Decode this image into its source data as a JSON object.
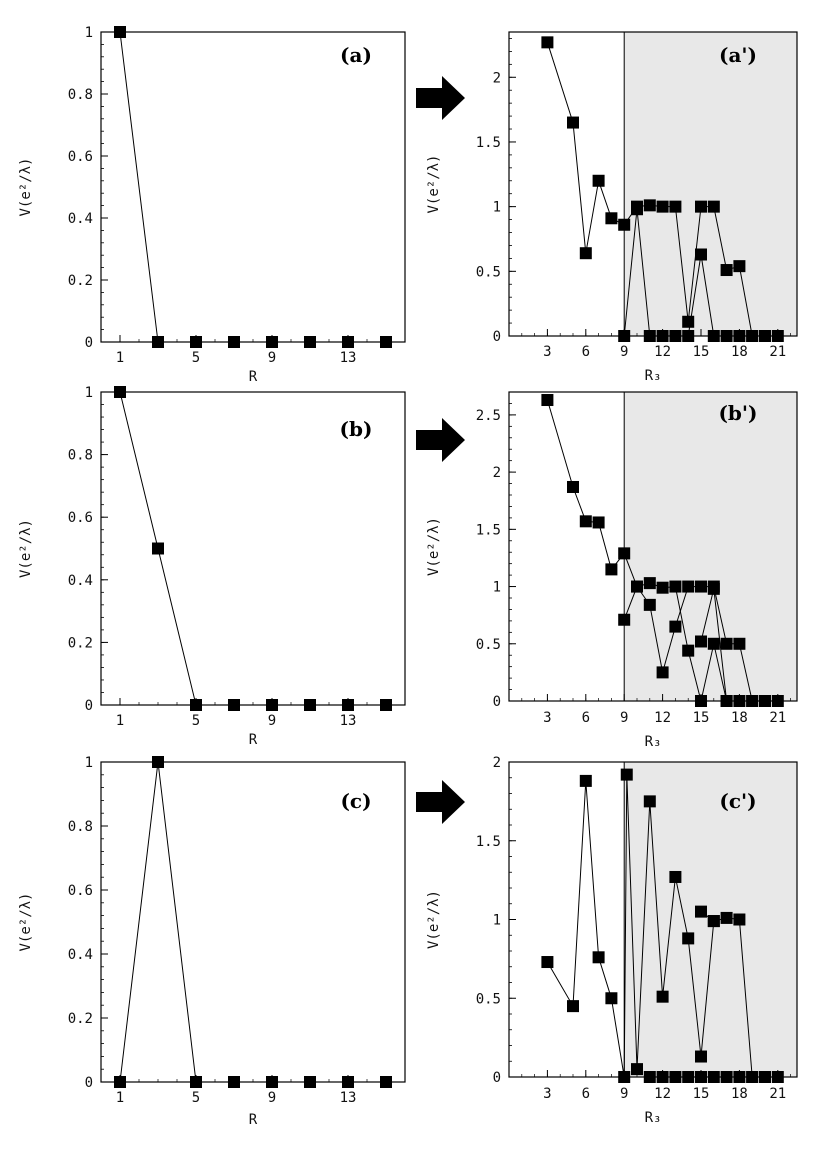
{
  "charts": [
    {
      "panel_label": "(a)",
      "chart_data": {
        "type": "line",
        "xlabel": "R",
        "ylabel": "V(e²/λ)",
        "xlim": [
          0,
          16
        ],
        "ylim": [
          0,
          1
        ],
        "xticks": [
          1,
          5,
          9,
          13
        ],
        "yticks": [
          0,
          0.2,
          0.4,
          0.6,
          0.8,
          1
        ],
        "ytick_labels": [
          "0",
          "0.2",
          "0.4",
          "0.6",
          "0.8",
          "1"
        ],
        "grid": false,
        "series": [
          {
            "x": [
              1,
              3,
              5,
              7,
              9,
              11,
              13,
              15
            ],
            "y": [
              1,
              0,
              0,
              0,
              0,
              0,
              0,
              0
            ]
          }
        ]
      }
    },
    {
      "panel_label": "(a')",
      "chart_data": {
        "type": "line",
        "xlabel": "R₃",
        "ylabel": "V(e²/λ)",
        "xlim": [
          0,
          22.5
        ],
        "ylim": [
          0,
          2.35
        ],
        "xticks": [
          3,
          6,
          9,
          12,
          15,
          18,
          21
        ],
        "yticks": [
          0,
          0.5,
          1,
          1.5,
          2
        ],
        "ytick_labels": [
          "0",
          "0.5",
          "1",
          "1.5",
          "2"
        ],
        "shaded_region_x_from": 9,
        "grid": false,
        "series": [
          {
            "x": [
              3,
              5,
              6,
              7,
              8,
              9,
              10,
              11,
              12,
              13,
              14,
              15,
              16,
              17,
              18,
              19
            ],
            "y": [
              2.27,
              1.65,
              0.64,
              1.2,
              0.91,
              0.86,
              1.0,
              1.01,
              1.0,
              1.0,
              0.11,
              1.0,
              1.0,
              0.51,
              0.54,
              0
            ]
          },
          {
            "x": [
              9,
              10,
              11,
              12,
              13,
              14,
              15,
              16,
              17,
              18,
              19,
              20,
              21
            ],
            "y": [
              0,
              0.98,
              0,
              0,
              0,
              0,
              0.63,
              0,
              0,
              0,
              0,
              0,
              0
            ]
          }
        ]
      }
    },
    {
      "panel_label": "(b)",
      "chart_data": {
        "type": "line",
        "xlabel": "R",
        "ylabel": "V(e²/λ)",
        "xlim": [
          0,
          16
        ],
        "ylim": [
          0,
          1
        ],
        "xticks": [
          1,
          5,
          9,
          13
        ],
        "yticks": [
          0,
          0.2,
          0.4,
          0.6,
          0.8,
          1
        ],
        "ytick_labels": [
          "0",
          "0.2",
          "0.4",
          "0.6",
          "0.8",
          "1"
        ],
        "grid": false,
        "series": [
          {
            "x": [
              1,
              3,
              5,
              7,
              9,
              11,
              13,
              15
            ],
            "y": [
              1,
              0.5,
              0,
              0,
              0,
              0,
              0,
              0
            ]
          }
        ]
      }
    },
    {
      "panel_label": "(b')",
      "chart_data": {
        "type": "line",
        "xlabel": "R₃",
        "ylabel": "V(e²/λ)",
        "xlim": [
          0,
          22.5
        ],
        "ylim": [
          0,
          2.7
        ],
        "xticks": [
          3,
          6,
          9,
          12,
          15,
          18,
          21
        ],
        "yticks": [
          0,
          0.5,
          1,
          1.5,
          2,
          2.5
        ],
        "ytick_labels": [
          "0",
          "0.5",
          "1",
          "1.5",
          "2",
          "2.5"
        ],
        "shaded_region_x_from": 9,
        "grid": false,
        "series": [
          {
            "x": [
              3,
              5,
              6,
              7,
              8,
              9,
              10,
              11,
              12,
              13,
              14,
              15,
              16,
              17,
              18,
              19
            ],
            "y": [
              2.63,
              1.87,
              1.57,
              1.56,
              1.15,
              1.29,
              1.0,
              0.84,
              0.25,
              0.65,
              1.0,
              1.0,
              1.0,
              0.5,
              0.5,
              0
            ]
          },
          {
            "x": [
              9,
              10,
              11,
              12,
              13,
              14,
              15,
              16,
              17,
              18,
              19,
              20,
              21
            ],
            "y": [
              0.71,
              1.0,
              1.03,
              0.99,
              1.0,
              0.44,
              0.0,
              0.5,
              0,
              0,
              0,
              0,
              0
            ]
          },
          {
            "x": [
              15,
              16,
              17
            ],
            "y": [
              0.52,
              0.98,
              0
            ]
          }
        ]
      }
    },
    {
      "panel_label": "(c)",
      "chart_data": {
        "type": "line",
        "xlabel": "R",
        "ylabel": "V(e²/λ)",
        "xlim": [
          0,
          16
        ],
        "ylim": [
          0,
          1
        ],
        "xticks": [
          1,
          5,
          9,
          13
        ],
        "yticks": [
          0,
          0.2,
          0.4,
          0.6,
          0.8,
          1
        ],
        "ytick_labels": [
          "0",
          "0.2",
          "0.4",
          "0.6",
          "0.8",
          "1"
        ],
        "grid": false,
        "series": [
          {
            "x": [
              1,
              3,
              5,
              7,
              9,
              11,
              13,
              15
            ],
            "y": [
              0,
              1,
              0,
              0,
              0,
              0,
              0,
              0
            ]
          }
        ]
      }
    },
    {
      "panel_label": "(c')",
      "chart_data": {
        "type": "line",
        "xlabel": "R₃",
        "ylabel": "V(e²/λ)",
        "xlim": [
          0,
          22.5
        ],
        "ylim": [
          0,
          2
        ],
        "xticks": [
          3,
          6,
          9,
          12,
          15,
          18,
          21
        ],
        "xtick_labels": [
          "3",
          "6",
          "9",
          "12",
          "15",
          "18",
          "21"
        ],
        "yticks": [
          0,
          0.5,
          1,
          1.5,
          2
        ],
        "ytick_labels": [
          "0",
          "0.5",
          "1",
          "1.5",
          "2"
        ],
        "shaded_region_x_from": 9,
        "grid": false,
        "series": [
          {
            "x": [
              3,
              5,
              6,
              7,
              8,
              9,
              9.2,
              10,
              11,
              12,
              13,
              14,
              15,
              16,
              17,
              18,
              19
            ],
            "y": [
              0.73,
              0.45,
              1.88,
              0.76,
              0.5,
              0,
              1.92,
              0.05,
              1.75,
              0.51,
              1.27,
              0.88,
              0.13,
              0.99,
              1.01,
              1.0,
              0
            ]
          },
          {
            "x": [
              15,
              16
            ],
            "y": [
              1.05,
              0.99
            ]
          },
          {
            "x": [
              11,
              12,
              13,
              14,
              15,
              16,
              17,
              18,
              19,
              20,
              21
            ],
            "y": [
              0,
              0,
              0,
              0,
              0,
              0,
              0,
              0,
              0,
              0,
              0
            ]
          }
        ]
      }
    }
  ]
}
